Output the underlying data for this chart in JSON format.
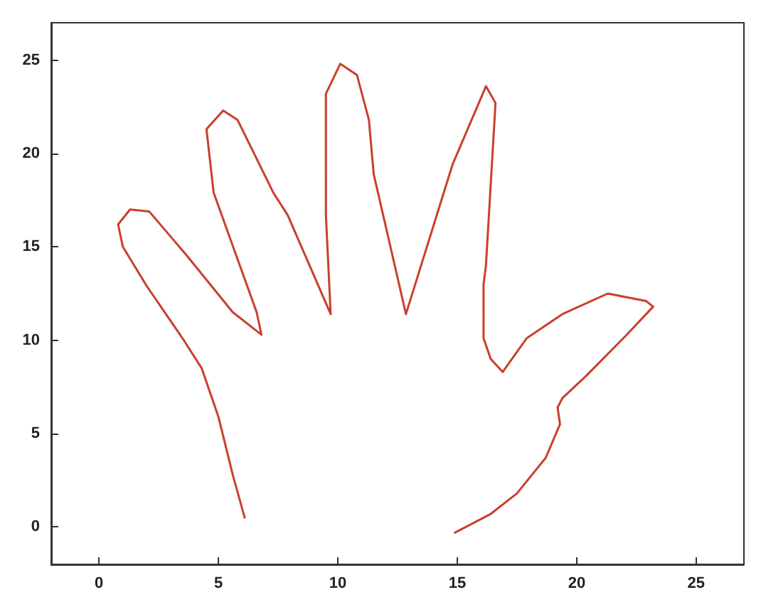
{
  "chart_data": {
    "type": "line",
    "x": [
      6.1,
      5.6,
      5.0,
      4.3,
      3.5,
      2.0,
      1.0,
      0.8,
      1.3,
      2.1,
      3.7,
      5.6,
      6.8,
      6.6,
      4.8,
      4.5,
      5.2,
      5.8,
      7.3,
      7.9,
      9.7,
      9.5,
      9.5,
      10.1,
      10.8,
      11.3,
      11.5,
      12.85,
      14.8,
      16.2,
      16.6,
      16.2,
      16.1,
      16.1,
      16.4,
      16.9,
      17.9,
      19.4,
      21.3,
      22.9,
      23.2,
      22.1,
      20.4,
      19.4,
      19.2,
      19.3,
      18.7,
      17.5,
      16.4,
      14.9
    ],
    "series": [
      {
        "color": "#c8402e",
        "values": [
          0.5,
          2.8,
          5.9,
          8.5,
          10.1,
          12.9,
          15.0,
          16.2,
          17.0,
          16.9,
          14.5,
          11.5,
          10.3,
          11.5,
          17.9,
          21.3,
          22.3,
          21.8,
          17.9,
          16.7,
          11.4,
          16.7,
          23.2,
          24.8,
          24.2,
          21.8,
          18.9,
          11.4,
          19.4,
          23.6,
          22.7,
          14.0,
          13.0,
          10.1,
          9.0,
          8.3,
          10.1,
          11.4,
          12.5,
          12.1,
          11.8,
          10.3,
          8.1,
          6.9,
          6.4,
          5.5,
          3.7,
          1.8,
          0.7,
          -0.3
        ]
      }
    ],
    "xlim": [
      -2,
      27
    ],
    "ylim": [
      -2,
      27
    ],
    "xticks": [
      0,
      5,
      10,
      15,
      20,
      25
    ],
    "yticks": [
      0,
      5,
      10,
      15,
      20,
      25
    ],
    "grid": false,
    "marker": "none",
    "line_style": "solid"
  }
}
